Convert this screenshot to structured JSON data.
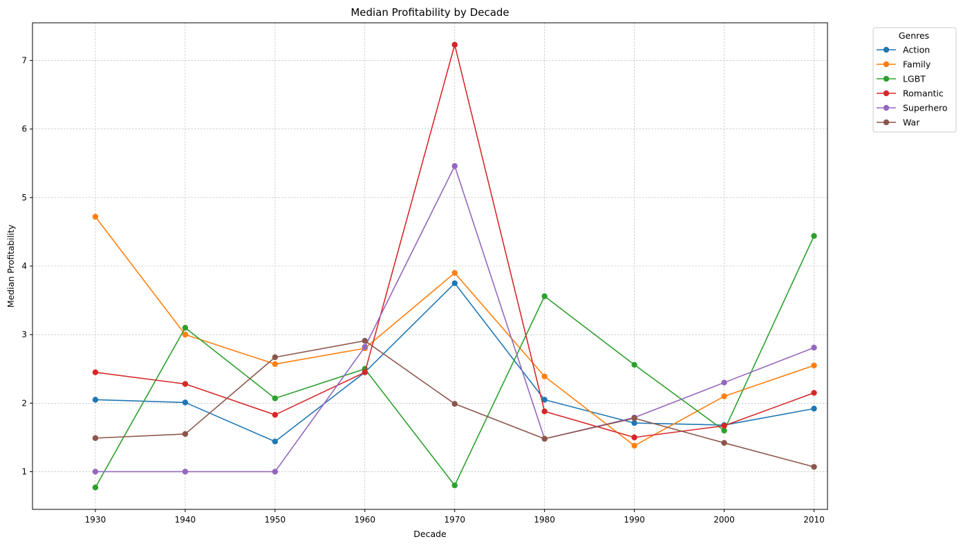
{
  "chart_data": {
    "type": "line",
    "title": "Median Profitability by Decade",
    "xlabel": "Decade",
    "ylabel": "Median Profitability",
    "x": [
      1930,
      1940,
      1950,
      1960,
      1970,
      1980,
      1990,
      2000,
      2010
    ],
    "xticks": [
      "1930",
      "1940",
      "1950",
      "1960",
      "1970",
      "1980",
      "1990",
      "2000",
      "2010"
    ],
    "yticks": [
      "1",
      "2",
      "3",
      "4",
      "5",
      "6",
      "7"
    ],
    "xlim": [
      1923,
      2011.5
    ],
    "ylim": [
      0.45,
      7.55
    ],
    "grid": true,
    "legend_title": "Genres",
    "legend_placement": "outside-top-right",
    "series": [
      {
        "name": "Action",
        "color": "#1f77b4",
        "values": [
          2.05,
          2.01,
          1.44,
          2.45,
          3.75,
          2.05,
          1.71,
          1.68,
          1.92
        ]
      },
      {
        "name": "Family",
        "color": "#ff7f0e",
        "values": [
          4.72,
          3.0,
          2.57,
          2.8,
          3.9,
          2.39,
          1.38,
          2.1,
          2.55
        ]
      },
      {
        "name": "LGBT",
        "color": "#2ca02c",
        "values": [
          0.77,
          3.1,
          2.07,
          2.5,
          0.8,
          3.56,
          2.56,
          1.6,
          4.44
        ]
      },
      {
        "name": "Romantic",
        "color": "#d62728",
        "values": [
          2.45,
          2.28,
          1.83,
          2.45,
          7.23,
          1.88,
          1.5,
          1.67,
          2.15
        ]
      },
      {
        "name": "Superhero",
        "color": "#9467bd",
        "values": [
          1.0,
          1.0,
          1.0,
          2.82,
          5.46,
          1.48,
          1.79,
          2.3,
          2.81
        ]
      },
      {
        "name": "War",
        "color": "#8c564b",
        "values": [
          1.49,
          1.55,
          2.67,
          2.91,
          1.99,
          1.48,
          1.78,
          1.42,
          1.07
        ]
      }
    ]
  }
}
